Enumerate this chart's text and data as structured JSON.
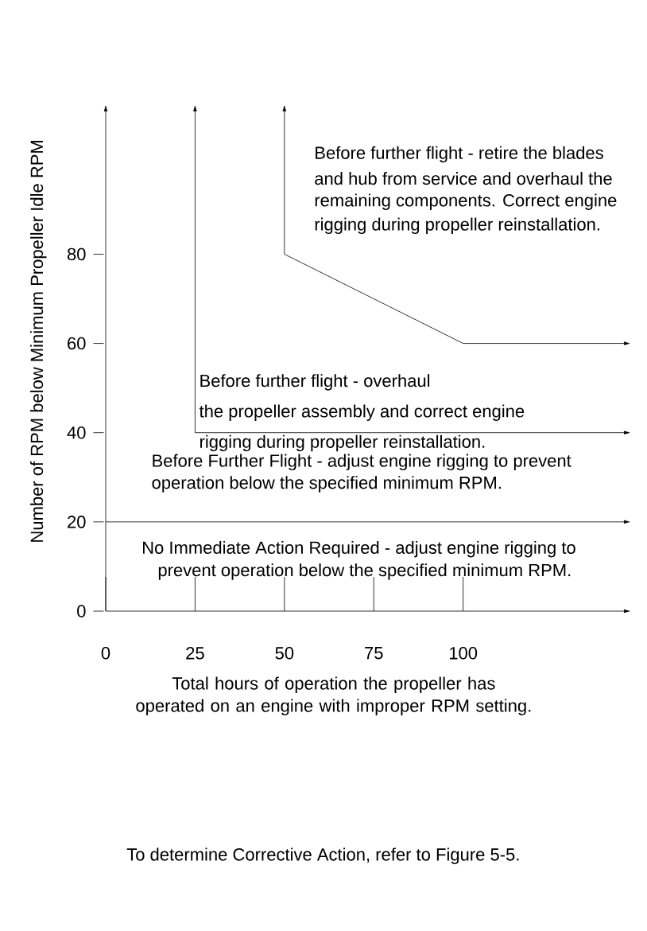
{
  "chart_data": {
    "type": "line",
    "xlabel": "Total hours of operation the propeller has operated on an engine with improper RPM setting.",
    "ylabel": "Number of RPM below Minimum Propeller Idle RPM",
    "xlim": [
      0,
      145
    ],
    "ylim": [
      0,
      112
    ],
    "xticks": [
      0,
      25,
      50,
      75,
      100
    ],
    "yticks": [
      0,
      20,
      40,
      60,
      80
    ],
    "series": [
      {
        "color": "#000000",
        "x": [
          0,
          145
        ],
        "values": [
          20,
          20
        ]
      },
      {
        "color": "#000000",
        "x": [
          25,
          25,
          145
        ],
        "values": [
          112,
          40,
          40
        ]
      },
      {
        "color": "#000000",
        "x": [
          50,
          50,
          100,
          145
        ],
        "values": [
          112,
          80,
          60,
          60
        ]
      }
    ],
    "annotations": [
      "Before further flight - retire the blades",
      "and hub from service and overhaul the",
      "remaining components. Correct engine",
      "rigging during propeller reinstallation.",
      "Before further flight - overhaul",
      "the propeller assembly and correct engine",
      "rigging during propeller reinstallation.",
      "Before Further Flight - adjust engine rigging to prevent",
      "operation below the specified minimum RPM.",
      "No Immediate Action Required - adjust engine rigging to",
      "prevent operation below the specified minimum RPM.",
      "To determine Corrective Action, refer to Figure 5-5."
    ],
    "marker": "none"
  }
}
